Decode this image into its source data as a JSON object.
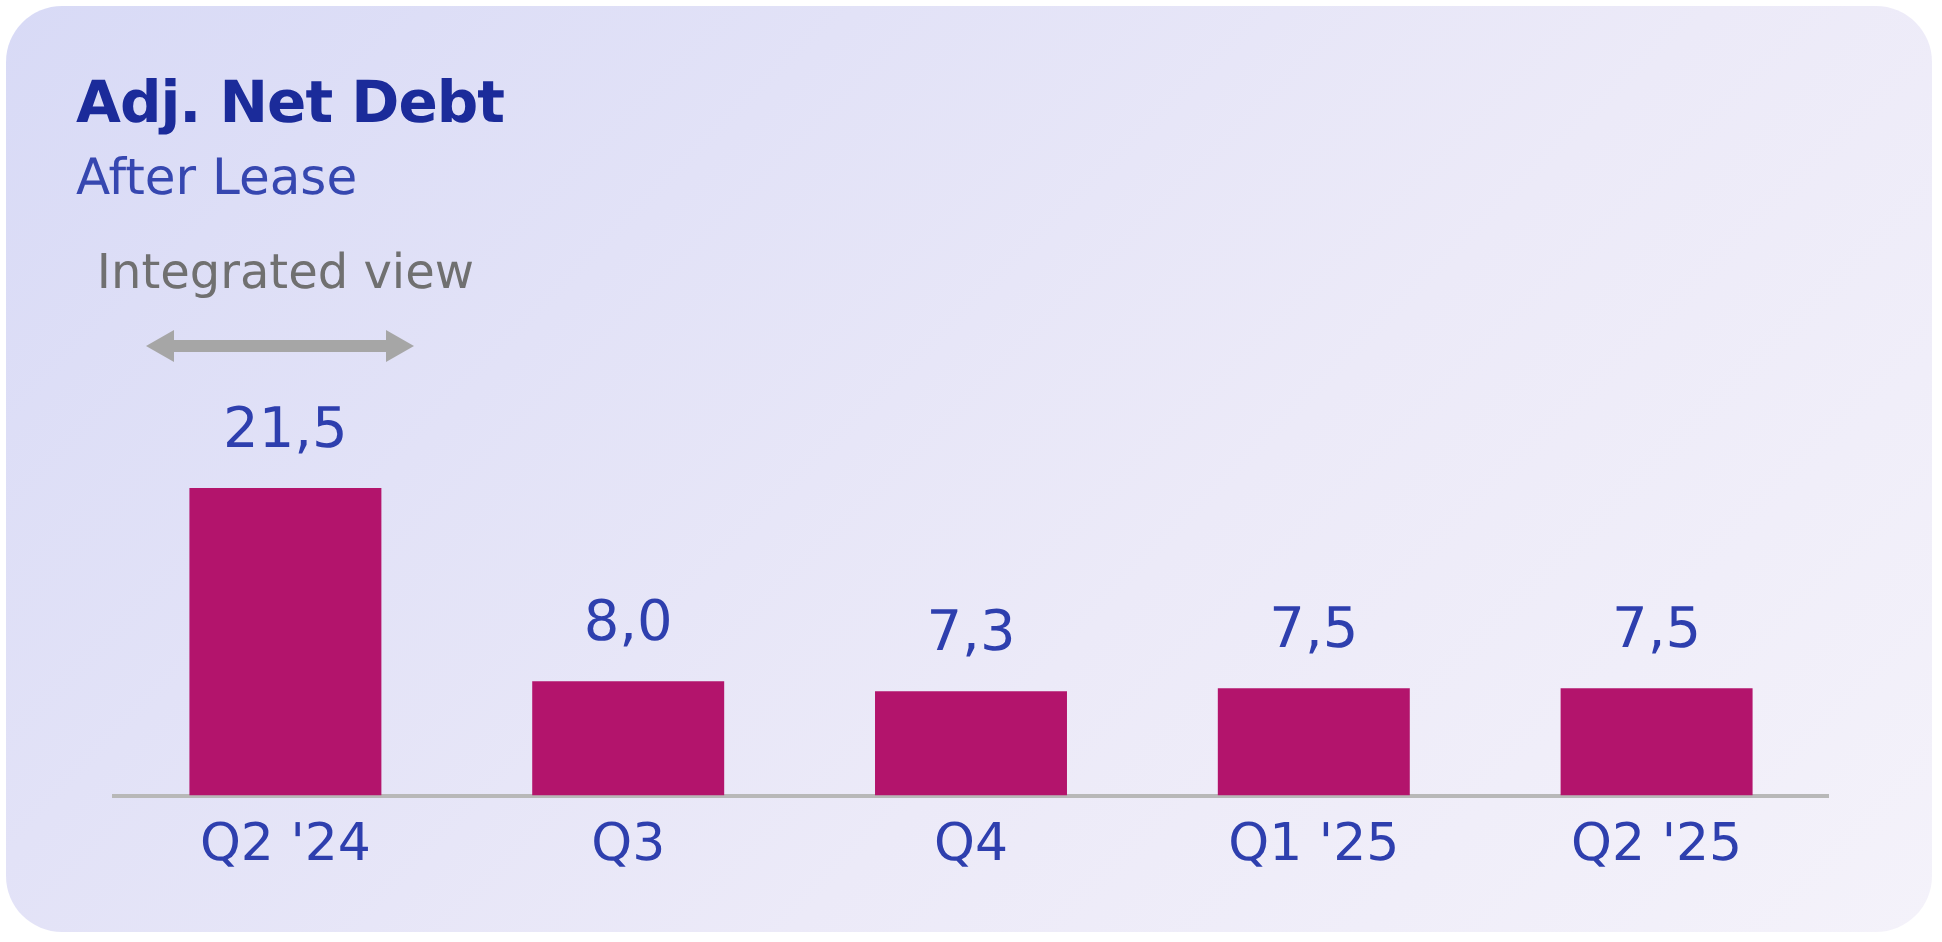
{
  "chart_data": {
    "type": "bar",
    "title": "Adj. Net Debt",
    "subtitle": "After Lease",
    "annotations": [
      "Integrated view"
    ],
    "categories": [
      "Q2 '24",
      "Q3",
      "Q4",
      "Q1 '25",
      "Q2 '25"
    ],
    "values": [
      21.5,
      8.0,
      7.3,
      7.5,
      7.5
    ],
    "value_labels": [
      "21,5",
      "8,0",
      "7,3",
      "7,5",
      "7,5"
    ],
    "color": "#b3146c",
    "grid": false,
    "legend": false,
    "tick_labels": "x"
  }
}
